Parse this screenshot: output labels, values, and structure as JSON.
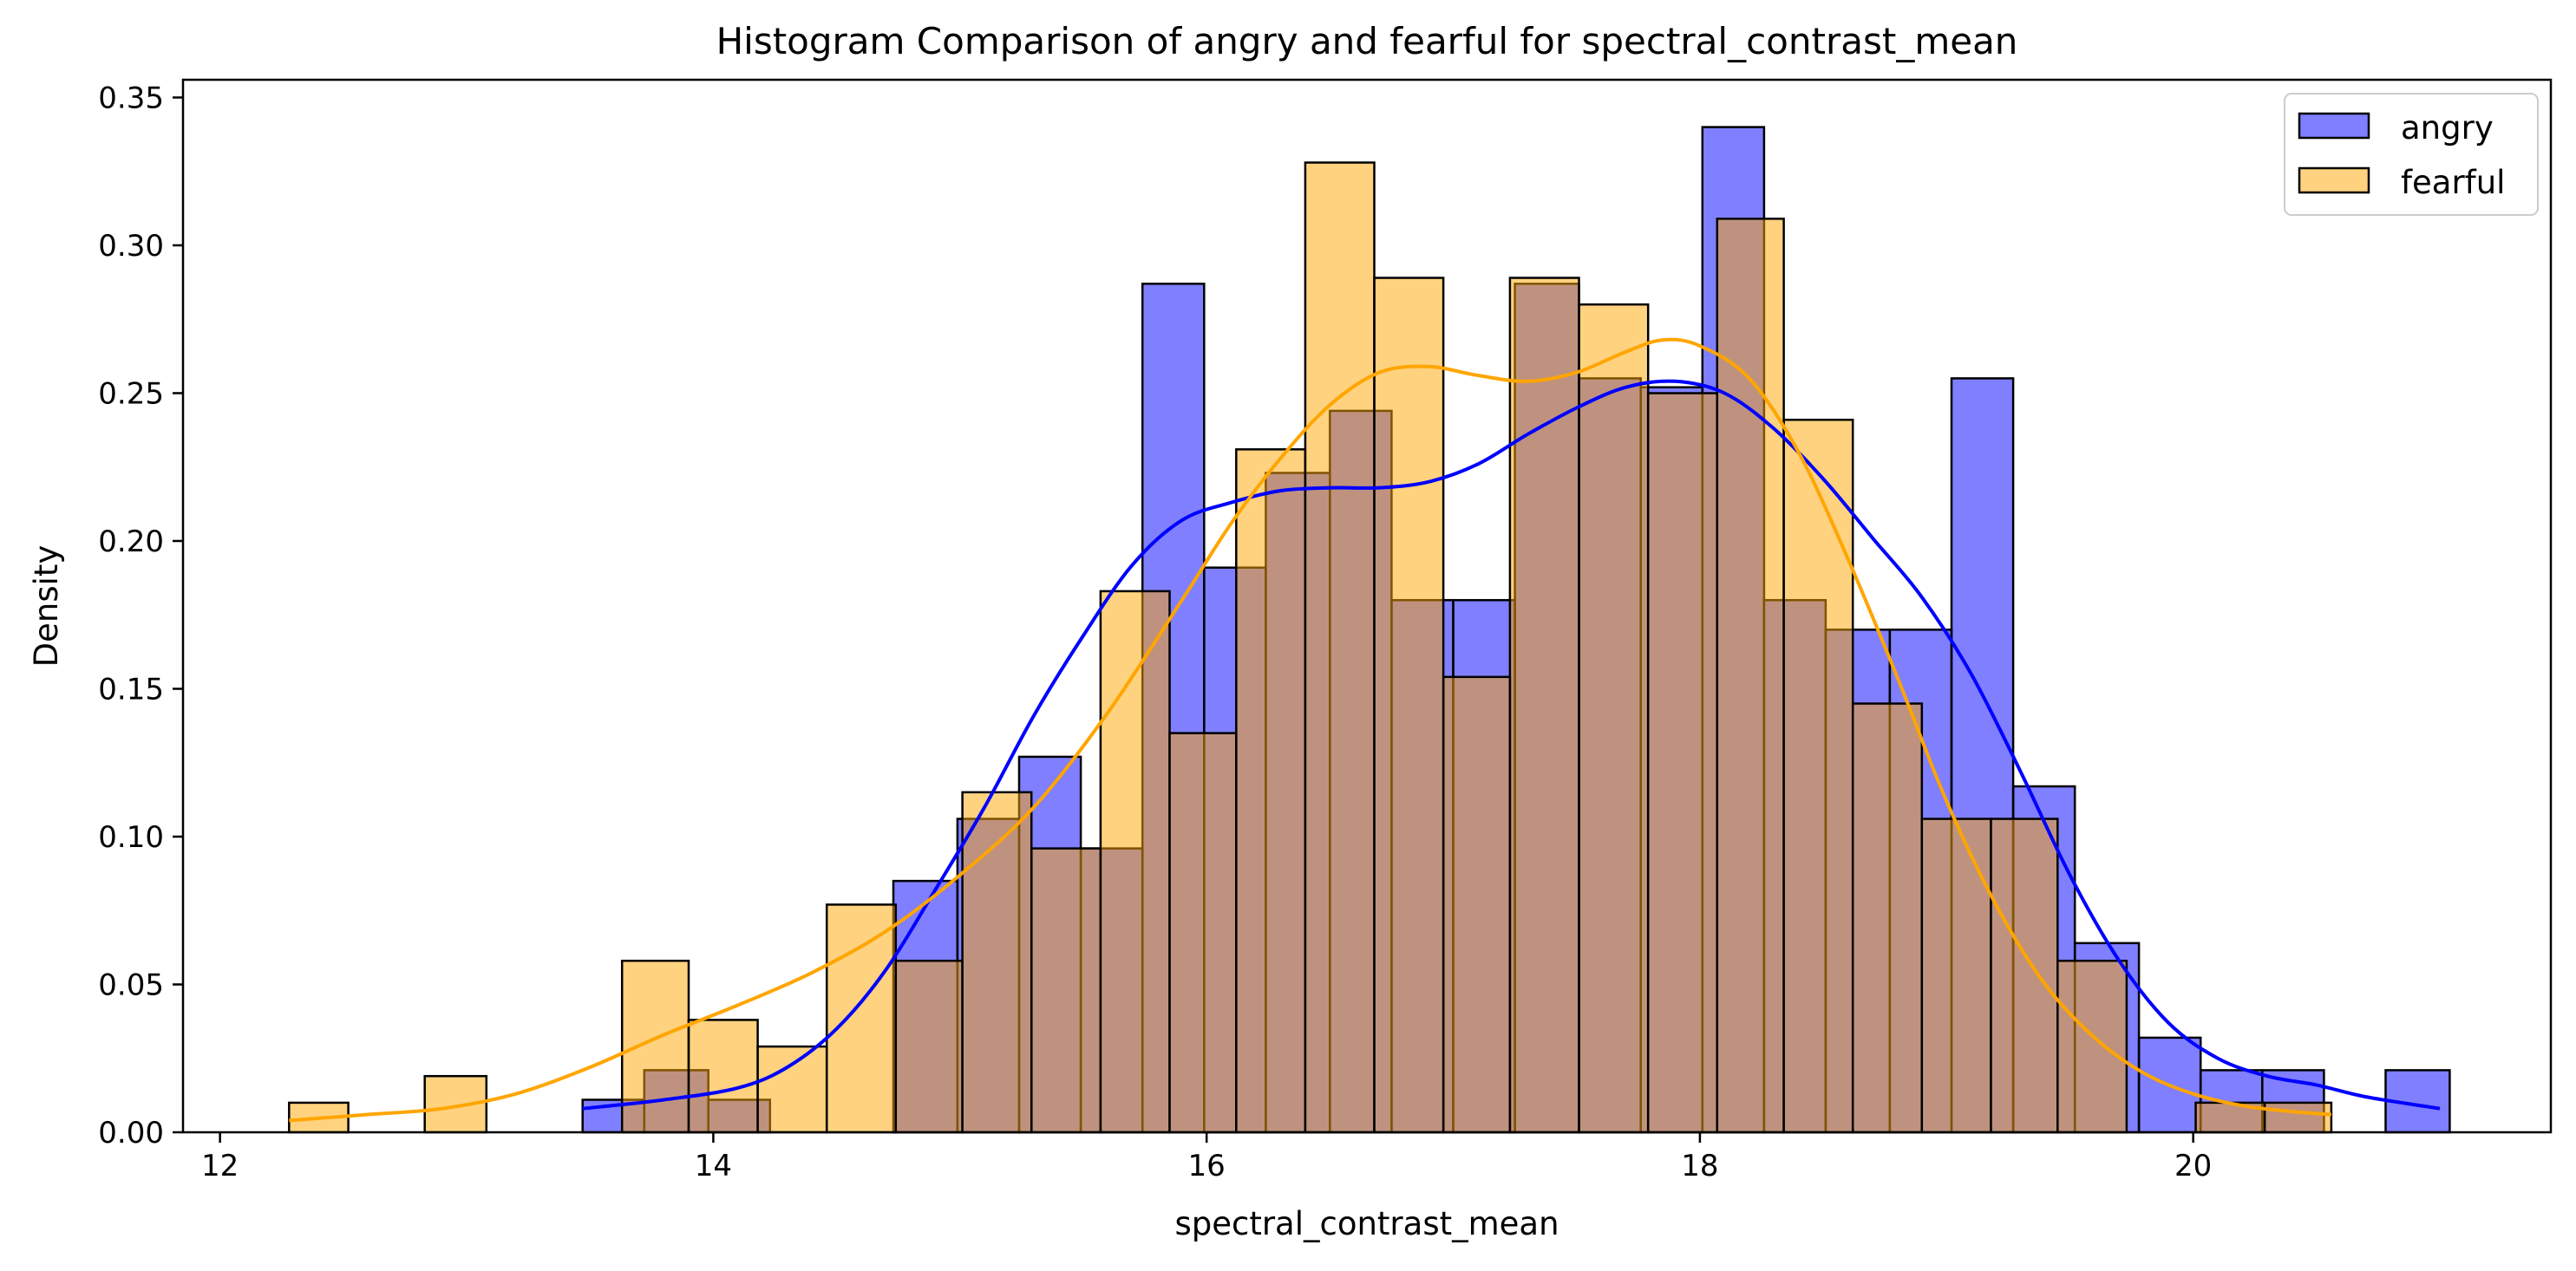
{
  "chart_data": {
    "type": "bar",
    "title": "Histogram Comparison of angry and fearful for spectral_contrast_mean",
    "xlabel": "spectral_contrast_mean",
    "ylabel": "Density",
    "xlim": [
      11.85,
      21.45
    ],
    "ylim": [
      0,
      0.356
    ],
    "xticks": [
      12,
      14,
      16,
      18,
      20
    ],
    "yticks": [
      0.0,
      0.05,
      0.1,
      0.15,
      0.2,
      0.25,
      0.3,
      0.35
    ],
    "xtick_labels": [
      "12",
      "14",
      "16",
      "18",
      "20"
    ],
    "ytick_labels": [
      "0.00",
      "0.05",
      "0.10",
      "0.15",
      "0.20",
      "0.25",
      "0.30",
      "0.35"
    ],
    "grid": false,
    "legend_position": "top-right",
    "series": [
      {
        "name": "angry",
        "color": "#0000ff",
        "kde_color": "#0000ff",
        "bins": [
          [
            13.47,
            13.72,
            0.011
          ],
          [
            13.72,
            13.98,
            0.021
          ],
          [
            13.98,
            14.23,
            0.011
          ],
          [
            14.73,
            14.99,
            0.085
          ],
          [
            14.99,
            15.24,
            0.106
          ],
          [
            15.24,
            15.49,
            0.127
          ],
          [
            15.49,
            15.74,
            0.096
          ],
          [
            15.74,
            15.99,
            0.287
          ],
          [
            15.99,
            16.24,
            0.191
          ],
          [
            16.24,
            16.5,
            0.223
          ],
          [
            16.5,
            16.75,
            0.244
          ],
          [
            16.75,
            17.0,
            0.18
          ],
          [
            17.0,
            17.25,
            0.18
          ],
          [
            17.25,
            17.51,
            0.287
          ],
          [
            17.51,
            17.76,
            0.255
          ],
          [
            17.76,
            18.01,
            0.252
          ],
          [
            18.01,
            18.26,
            0.34
          ],
          [
            18.26,
            18.51,
            0.18
          ],
          [
            18.51,
            18.77,
            0.17
          ],
          [
            18.77,
            19.02,
            0.17
          ],
          [
            19.02,
            19.27,
            0.255
          ],
          [
            19.27,
            19.52,
            0.117
          ],
          [
            19.52,
            19.78,
            0.064
          ],
          [
            19.78,
            20.03,
            0.032
          ],
          [
            20.03,
            20.28,
            0.021
          ],
          [
            20.28,
            20.53,
            0.021
          ],
          [
            20.78,
            21.04,
            0.021
          ]
        ],
        "kde": [
          [
            13.47,
            0.008
          ],
          [
            13.8,
            0.011
          ],
          [
            14.1,
            0.015
          ],
          [
            14.3,
            0.022
          ],
          [
            14.5,
            0.035
          ],
          [
            14.7,
            0.055
          ],
          [
            14.9,
            0.082
          ],
          [
            15.1,
            0.11
          ],
          [
            15.3,
            0.141
          ],
          [
            15.5,
            0.168
          ],
          [
            15.7,
            0.192
          ],
          [
            15.9,
            0.207
          ],
          [
            16.1,
            0.213
          ],
          [
            16.3,
            0.217
          ],
          [
            16.5,
            0.218
          ],
          [
            16.7,
            0.218
          ],
          [
            16.9,
            0.22
          ],
          [
            17.1,
            0.226
          ],
          [
            17.3,
            0.236
          ],
          [
            17.5,
            0.245
          ],
          [
            17.7,
            0.252
          ],
          [
            17.9,
            0.254
          ],
          [
            18.1,
            0.25
          ],
          [
            18.3,
            0.238
          ],
          [
            18.5,
            0.221
          ],
          [
            18.7,
            0.201
          ],
          [
            18.9,
            0.181
          ],
          [
            19.1,
            0.155
          ],
          [
            19.3,
            0.122
          ],
          [
            19.5,
            0.087
          ],
          [
            19.7,
            0.058
          ],
          [
            19.9,
            0.037
          ],
          [
            20.1,
            0.025
          ],
          [
            20.3,
            0.019
          ],
          [
            20.5,
            0.016
          ],
          [
            20.7,
            0.012
          ],
          [
            21.0,
            0.008
          ]
        ]
      },
      {
        "name": "fearful",
        "color": "#ffa500",
        "kde_color": "#ffa500",
        "bins": [
          [
            12.28,
            12.52,
            0.01
          ],
          [
            12.83,
            13.08,
            0.019
          ],
          [
            13.63,
            13.9,
            0.058
          ],
          [
            13.9,
            14.18,
            0.038
          ],
          [
            14.18,
            14.46,
            0.029
          ],
          [
            14.46,
            14.74,
            0.077
          ],
          [
            14.74,
            15.01,
            0.058
          ],
          [
            15.01,
            15.29,
            0.115
          ],
          [
            15.29,
            15.57,
            0.096
          ],
          [
            15.57,
            15.85,
            0.183
          ],
          [
            15.85,
            16.12,
            0.135
          ],
          [
            16.12,
            16.4,
            0.231
          ],
          [
            16.4,
            16.68,
            0.328
          ],
          [
            16.68,
            16.96,
            0.289
          ],
          [
            16.96,
            17.23,
            0.154
          ],
          [
            17.23,
            17.51,
            0.289
          ],
          [
            17.51,
            17.79,
            0.28
          ],
          [
            17.79,
            18.07,
            0.25
          ],
          [
            18.07,
            18.34,
            0.309
          ],
          [
            18.34,
            18.62,
            0.241
          ],
          [
            18.62,
            18.9,
            0.145
          ],
          [
            18.9,
            19.18,
            0.106
          ],
          [
            19.18,
            19.45,
            0.106
          ],
          [
            19.45,
            19.73,
            0.058
          ],
          [
            20.01,
            20.29,
            0.01
          ],
          [
            20.29,
            20.56,
            0.01
          ]
        ],
        "kde": [
          [
            12.28,
            0.004
          ],
          [
            12.6,
            0.006
          ],
          [
            12.9,
            0.008
          ],
          [
            13.2,
            0.013
          ],
          [
            13.5,
            0.022
          ],
          [
            13.8,
            0.033
          ],
          [
            14.1,
            0.043
          ],
          [
            14.4,
            0.054
          ],
          [
            14.7,
            0.068
          ],
          [
            15.0,
            0.087
          ],
          [
            15.3,
            0.11
          ],
          [
            15.6,
            0.142
          ],
          [
            15.9,
            0.18
          ],
          [
            16.1,
            0.206
          ],
          [
            16.3,
            0.228
          ],
          [
            16.5,
            0.246
          ],
          [
            16.7,
            0.257
          ],
          [
            16.9,
            0.259
          ],
          [
            17.1,
            0.256
          ],
          [
            17.3,
            0.254
          ],
          [
            17.5,
            0.257
          ],
          [
            17.7,
            0.264
          ],
          [
            17.85,
            0.268
          ],
          [
            18.0,
            0.266
          ],
          [
            18.2,
            0.255
          ],
          [
            18.4,
            0.23
          ],
          [
            18.6,
            0.194
          ],
          [
            18.8,
            0.154
          ],
          [
            19.0,
            0.112
          ],
          [
            19.2,
            0.077
          ],
          [
            19.4,
            0.05
          ],
          [
            19.6,
            0.032
          ],
          [
            19.8,
            0.02
          ],
          [
            20.0,
            0.013
          ],
          [
            20.2,
            0.009
          ],
          [
            20.4,
            0.007
          ],
          [
            20.56,
            0.006
          ]
        ]
      }
    ]
  }
}
